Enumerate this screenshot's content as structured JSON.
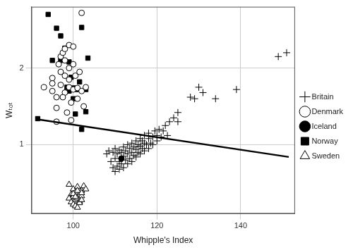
{
  "chart_data": {
    "type": "scatter",
    "x_label": "Whipple's Index",
    "y_label": "Wₜₒₜ",
    "xlim": [
      90,
      153
    ],
    "xticks": [
      100,
      120,
      140
    ],
    "ylim": [
      0.1,
      2.8
    ],
    "yticks": [
      1,
      2
    ],
    "grid": true,
    "legend": "right",
    "series": [
      {
        "name": "Britain",
        "color": "#000000",
        "marker": "plus",
        "x": [
          108,
          108.5,
          109,
          109.5,
          109.5,
          110,
          110,
          110,
          110.5,
          110.5,
          111,
          111,
          111,
          111.5,
          111.5,
          112,
          112,
          112,
          112.5,
          112.5,
          113,
          113,
          113,
          113.5,
          113.5,
          114,
          114,
          114,
          114.5,
          114.5,
          115,
          115,
          115,
          115.5,
          115.5,
          116,
          116,
          116,
          116.5,
          116.5,
          117,
          117,
          117,
          117.5,
          118,
          118,
          118,
          118.5,
          119,
          119,
          119.5,
          120,
          120,
          120.5,
          121,
          121.5,
          122,
          122.5,
          123,
          124,
          125,
          125,
          128,
          129,
          130,
          131,
          134,
          139,
          149,
          151
        ],
        "values": [
          0.88,
          0.92,
          0.78,
          0.7,
          0.9,
          0.65,
          0.82,
          0.95,
          0.72,
          0.88,
          0.68,
          0.78,
          0.93,
          0.75,
          0.9,
          0.7,
          0.85,
          0.97,
          0.8,
          0.92,
          0.75,
          0.88,
          1.0,
          0.82,
          0.95,
          0.78,
          0.9,
          1.02,
          0.86,
          0.97,
          0.84,
          0.94,
          1.05,
          0.9,
          1.0,
          0.88,
          0.98,
          1.08,
          0.95,
          1.05,
          0.92,
          1.02,
          1.12,
          1.0,
          0.95,
          1.08,
          1.15,
          1.02,
          1.0,
          1.1,
          1.18,
          1.05,
          1.12,
          1.2,
          1.1,
          1.18,
          1.25,
          1.12,
          1.3,
          1.35,
          1.42,
          1.3,
          1.62,
          1.6,
          1.75,
          1.68,
          1.6,
          1.72,
          2.15,
          2.2
        ]
      },
      {
        "name": "Denmark",
        "color": "#000000",
        "marker": "circle_open",
        "x": [
          93,
          95,
          95,
          95,
          96,
          96,
          96.5,
          97,
          97,
          97.5,
          97,
          98,
          98,
          98,
          98,
          98.5,
          99,
          99,
          99,
          99,
          99.5,
          99.5,
          100,
          100,
          100,
          100.5,
          101,
          101,
          101.5,
          102,
          102,
          102.5,
          103,
          97.5,
          96
        ],
        "values": [
          1.75,
          1.87,
          1.8,
          1.7,
          1.62,
          1.48,
          2.05,
          1.95,
          2.15,
          2.2,
          1.78,
          2.25,
          2.1,
          1.9,
          1.68,
          1.42,
          2.3,
          2.0,
          1.85,
          1.75,
          1.55,
          1.32,
          2.28,
          2.05,
          1.72,
          1.9,
          1.74,
          1.6,
          1.95,
          2.72,
          1.7,
          1.5,
          1.75,
          1.62,
          1.3
        ]
      },
      {
        "name": "Iceland",
        "color": "#000000",
        "marker": "circle",
        "x": [
          111.5
        ],
        "values": [
          0.82
        ]
      },
      {
        "name": "Norway",
        "color": "#000000",
        "marker": "square",
        "x": [
          94,
          95,
          96,
          97,
          98,
          97,
          99,
          99.5,
          100,
          99,
          100,
          101,
          100.5,
          102,
          102,
          103,
          103,
          103.5,
          98.5,
          91.5,
          101.5
        ],
        "values": [
          2.7,
          2.1,
          2.52,
          2.42,
          2.26,
          2.1,
          2.08,
          1.88,
          1.74,
          1.7,
          1.6,
          1.72,
          1.4,
          2.53,
          1.2,
          1.72,
          1.43,
          2.13,
          1.75,
          1.34,
          1.82
        ]
      },
      {
        "name": "Sweden",
        "color": "#000000",
        "marker": "triangle_open",
        "x": [
          99,
          100,
          100.5,
          101,
          101.5,
          102,
          102.5,
          103,
          99.5,
          100,
          100.5,
          101,
          101.5,
          102,
          99,
          99.5,
          100,
          100.5,
          101,
          101.5,
          102,
          100,
          101,
          102,
          100.5
        ],
        "values": [
          0.48,
          0.42,
          0.38,
          0.45,
          0.35,
          0.4,
          0.46,
          0.42,
          0.35,
          0.32,
          0.28,
          0.3,
          0.26,
          0.33,
          0.3,
          0.25,
          0.22,
          0.2,
          0.18,
          0.24,
          0.28,
          0.36,
          0.4,
          0.37,
          0.32
        ]
      }
    ],
    "lines": [
      {
        "type": "line",
        "color": "#000000",
        "line_style": "solid",
        "x": [
          91.5,
          151.5
        ],
        "values": [
          1.33,
          0.84
        ]
      }
    ]
  }
}
